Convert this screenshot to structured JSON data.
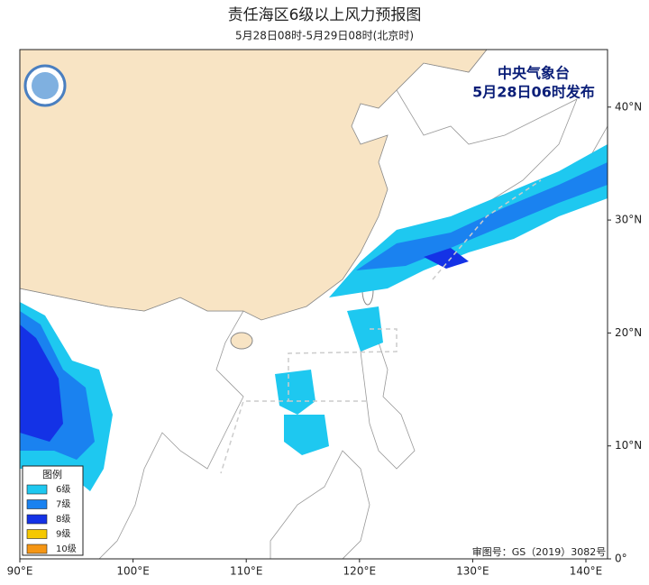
{
  "header": {
    "title": "责任海区6级以上风力预报图",
    "subtitle": "5月28日08时-5月29日08时(北京时)"
  },
  "issuer": {
    "name": "中央气象台",
    "time": "5月28日06时发布"
  },
  "axes": {
    "longitude": [
      "90°E",
      "100°E",
      "110°E",
      "120°E",
      "130°E",
      "140°E"
    ],
    "latitude": [
      "0°",
      "10°N",
      "20°N",
      "30°N",
      "40°N"
    ]
  },
  "legend": {
    "title": "图例",
    "items": [
      {
        "label": "6级",
        "color": "#1ec8f0"
      },
      {
        "label": "7级",
        "color": "#1a82f0"
      },
      {
        "label": "8级",
        "color": "#1432e6"
      },
      {
        "label": "9级",
        "color": "#f5c800"
      },
      {
        "label": "10级",
        "color": "#f59614"
      }
    ]
  },
  "approval": "审图号：GS（2019）3082号"
}
